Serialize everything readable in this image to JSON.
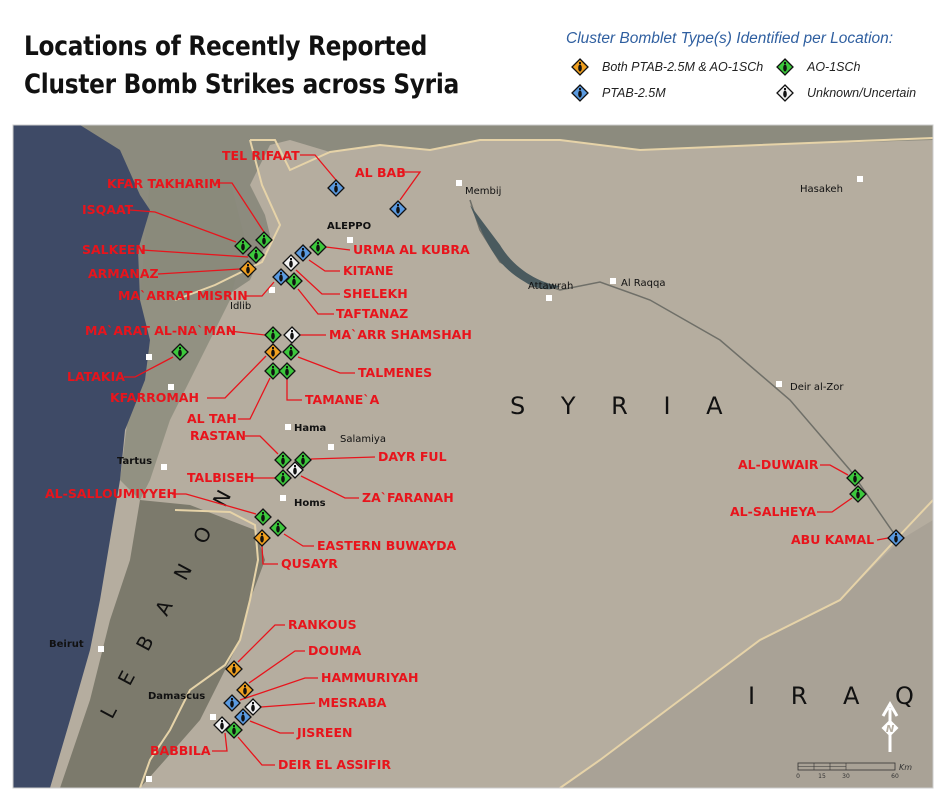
{
  "title": {
    "line1": "Locations of Recently Reported",
    "line2": "Cluster Bomb Strikes across Syria"
  },
  "legend": {
    "title": "Cluster Bomblet Type(s) Identified per Location:",
    "items": [
      {
        "key": "both",
        "label": "Both PTAB-2.5M & AO-1SCh",
        "color": "#f0a020"
      },
      {
        "key": "ao",
        "label": "AO-1SCh",
        "color": "#3cc83c"
      },
      {
        "key": "ptab",
        "label": "PTAB-2.5M",
        "color": "#5a9ae0"
      },
      {
        "key": "unknown",
        "label": "Unknown/Uncertain",
        "color": "#f2f2f2"
      }
    ]
  },
  "countries": {
    "syria": "S Y R I A",
    "iraq": "I R A Q",
    "lebanon": "L E B A N O N"
  },
  "cities": [
    "ALEPPO",
    "Membij",
    "Hasakeh",
    "Attawrah",
    "Al Raqqa",
    "Deir al-Zor",
    "Idlib",
    "Hama",
    "Salamiya",
    "Tartus",
    "Homs",
    "Beirut",
    "Damascus"
  ],
  "locations": [
    {
      "name": "TEL RIFAAT",
      "type": "ptab"
    },
    {
      "name": "AL BAB",
      "type": "ptab"
    },
    {
      "name": "KFAR TAKHARIM",
      "type": "ao"
    },
    {
      "name": "ISQAAT",
      "type": "ao"
    },
    {
      "name": "SALKEEN",
      "type": "ao"
    },
    {
      "name": "ARMANAZ",
      "type": "both"
    },
    {
      "name": "URMA AL KUBRA",
      "type": "ao"
    },
    {
      "name": "KITANE",
      "type": "ptab"
    },
    {
      "name": "SHELEKH",
      "type": "unknown"
    },
    {
      "name": "MA`ARRAT MISRIN",
      "type": "ptab"
    },
    {
      "name": "TAFTANAZ",
      "type": "ao"
    },
    {
      "name": "MA`ARAT AL-NA`MAN",
      "type": "ao"
    },
    {
      "name": "MA`ARR SHAMSHAH",
      "type": "unknown"
    },
    {
      "name": "KFARROMAH",
      "type": "both"
    },
    {
      "name": "TALMENES",
      "type": "ao"
    },
    {
      "name": "AL TAH",
      "type": "ao"
    },
    {
      "name": "TAMANE`A",
      "type": "ao"
    },
    {
      "name": "LATAKIA",
      "type": "ao"
    },
    {
      "name": "RASTAN",
      "type": "ao"
    },
    {
      "name": "DAYR FUL",
      "type": "ao"
    },
    {
      "name": "ZA`FARANAH",
      "type": "unknown"
    },
    {
      "name": "TALBISEH",
      "type": "ao"
    },
    {
      "name": "AL-SALLOUMIYYEH",
      "type": "ao"
    },
    {
      "name": "EASTERN BUWAYDA",
      "type": "ao"
    },
    {
      "name": "QUSAYR",
      "type": "both"
    },
    {
      "name": "RANKOUS",
      "type": "both"
    },
    {
      "name": "DOUMA",
      "type": "both"
    },
    {
      "name": "HAMMURIYAH",
      "type": "ptab"
    },
    {
      "name": "MESRABA",
      "type": "unknown"
    },
    {
      "name": "JISREEN",
      "type": "ptab"
    },
    {
      "name": "BABBILA",
      "type": "unknown"
    },
    {
      "name": "DEIR EL ASSIFIR",
      "type": "ao"
    },
    {
      "name": "AL-DUWAIR",
      "type": "ao"
    },
    {
      "name": "AL-SALHEYA",
      "type": "ao"
    },
    {
      "name": "ABU KAMAL",
      "type": "ptab"
    }
  ],
  "scale": {
    "unit": "Km",
    "ticks": [
      "0",
      "15",
      "30",
      "60"
    ]
  },
  "north_label": "N"
}
